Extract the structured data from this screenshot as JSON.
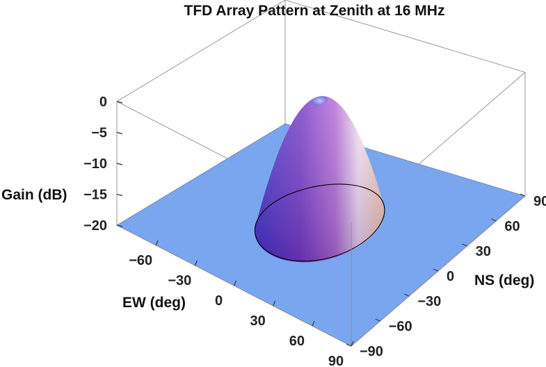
{
  "chart_data": {
    "type": "surface3d",
    "title": "TFD Array Pattern at Zenith at 16 MHz",
    "xlabel": "EW (deg)",
    "ylabel": "NS (deg)",
    "zlabel": "Gain (dB)",
    "xlim": [
      -90,
      90
    ],
    "ylim": [
      -90,
      90
    ],
    "zlim": [
      -20,
      0
    ],
    "x_ticks": [
      "−60",
      "−30",
      "0",
      "30",
      "60",
      "90"
    ],
    "x_tick_values": [
      -60,
      -30,
      0,
      30,
      60,
      90
    ],
    "y_ticks": [
      "−90",
      "−60",
      "−30",
      "0",
      "30",
      "60",
      "90"
    ],
    "y_tick_values": [
      -90,
      -60,
      -30,
      0,
      30,
      60,
      90
    ],
    "z_ticks": [
      "−20",
      "−15",
      "−10",
      "−5",
      "0"
    ],
    "z_tick_values": [
      -20,
      -15,
      -10,
      -5,
      0
    ],
    "peak": {
      "ew": 0,
      "ns": 0,
      "gain_db": 0
    },
    "main_lobe_half_width_deg": {
      "ew": 35,
      "ns": 48
    },
    "floor_gain_db": -20,
    "colors": {
      "floor": "#7aa6f0",
      "lobe_dark": "#4a2fb8",
      "lobe_mid": "#8a4fd0",
      "lobe_light": "#f2c6e6"
    }
  }
}
